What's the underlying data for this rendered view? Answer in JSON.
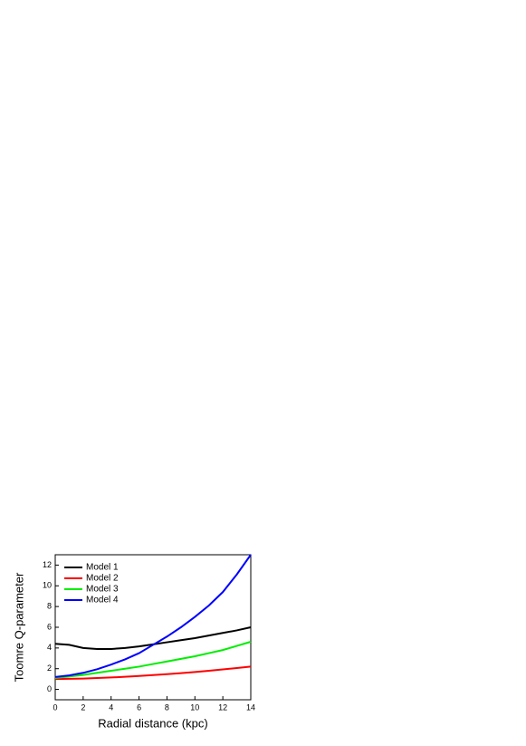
{
  "chart_data": {
    "type": "line",
    "xlabel": "Radial distance (kpc)",
    "ylabel": "Toomre Q-parameter",
    "x": [
      0,
      1,
      2,
      3,
      4,
      5,
      6,
      7,
      8,
      9,
      10,
      11,
      12,
      13,
      14
    ],
    "series": [
      {
        "name": "Model 1",
        "color": "#000000",
        "values": [
          4.4,
          4.3,
          4.0,
          3.9,
          3.9,
          4.0,
          4.15,
          4.35,
          4.55,
          4.75,
          4.95,
          5.2,
          5.45,
          5.7,
          6.0
        ]
      },
      {
        "name": "Model 2",
        "color": "#ff0000",
        "values": [
          1.0,
          1.02,
          1.05,
          1.1,
          1.15,
          1.22,
          1.3,
          1.38,
          1.47,
          1.57,
          1.68,
          1.8,
          1.93,
          2.06,
          2.2
        ]
      },
      {
        "name": "Model 3",
        "color": "#00ee00",
        "values": [
          1.1,
          1.25,
          1.4,
          1.6,
          1.8,
          2.0,
          2.2,
          2.45,
          2.7,
          2.95,
          3.2,
          3.5,
          3.8,
          4.2,
          4.6
        ]
      },
      {
        "name": "Model 4",
        "color": "#0000ff",
        "values": [
          1.2,
          1.35,
          1.6,
          1.95,
          2.4,
          2.9,
          3.5,
          4.3,
          5.1,
          6.0,
          7.0,
          8.1,
          9.4,
          11.1,
          13.0
        ]
      }
    ],
    "xlim": [
      0,
      14
    ],
    "xticks": [
      0,
      2,
      4,
      6,
      8,
      10,
      12,
      14
    ],
    "ylim": [
      -1,
      13
    ],
    "yticks": [
      0,
      2,
      4,
      6,
      8,
      10,
      12
    ],
    "legend": "upper-left"
  }
}
